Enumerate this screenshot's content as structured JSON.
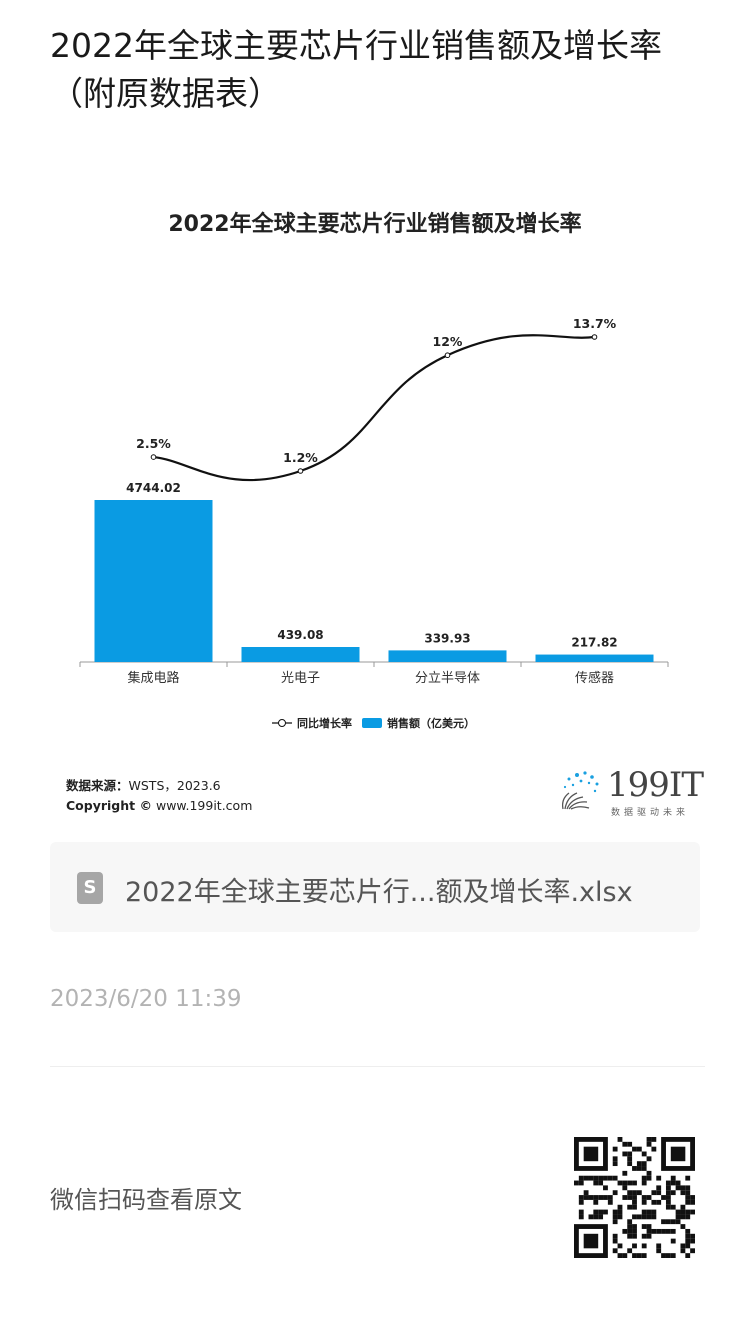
{
  "article": {
    "title": "2022年全球主要芯片行业销售额及增长率（附原数据表）"
  },
  "chart_card": {
    "source_label": "数据来源：",
    "source_value": "WSTS，2023.6",
    "copyright_label": "Copyright ©",
    "copyright_value": "www.199it.com",
    "brand_name": "199IT",
    "brand_slogan": "数据驱动未来"
  },
  "chart_data": {
    "type": "bar",
    "title": "2022年全球主要芯片行业销售额及增长率",
    "categories": [
      "集成电路",
      "光电子",
      "分立半导体",
      "传感器"
    ],
    "series": [
      {
        "name": "销售额（亿美元）",
        "type": "bar",
        "values": [
          4744.02,
          439.08,
          339.93,
          217.82
        ],
        "labels": [
          "4744.02",
          "439.08",
          "339.93",
          "217.82"
        ],
        "color": "#0a9be3"
      },
      {
        "name": "同比增长率",
        "type": "line",
        "values": [
          2.5,
          1.2,
          12,
          13.7
        ],
        "labels": [
          "2.5%",
          "1.2%",
          "12%",
          "13.7%"
        ],
        "color": "#111111"
      }
    ],
    "legend_position": "bottom",
    "grid": false
  },
  "attachment": {
    "file_name": "2022年全球主要芯片行...额及增长率.xlsx",
    "icon": "spreadsheet-file-icon",
    "icon_letter": "S"
  },
  "post": {
    "timestamp": "2023/6/20 11:39",
    "qr_caption": "微信扫码查看原文"
  }
}
